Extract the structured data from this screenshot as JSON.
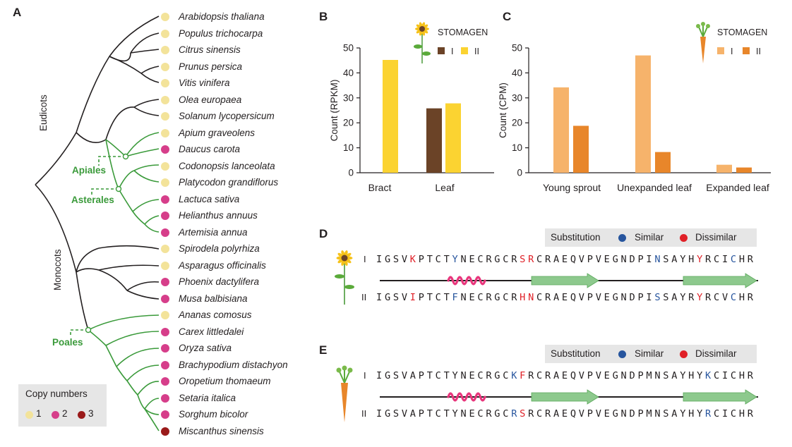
{
  "panels": {
    "a": "A",
    "b": "B",
    "c": "C",
    "d": "D",
    "e": "E"
  },
  "colors": {
    "copy1": "#f3e39a",
    "copy2": "#d63e8a",
    "copy3": "#9a1a1a",
    "tree_black": "#231f20",
    "tree_green": "#3a9a3a",
    "bract_leaf_II": "#fbd331",
    "sunflower_I": "#6b4327",
    "carrot_I": "#f6b36b",
    "carrot_II": "#e8862a",
    "similar": "#27559e",
    "dissimilar": "#e02027",
    "helix": "#e8367c",
    "strand": "#8dc98d"
  },
  "tree": {
    "species": [
      {
        "name": "Arabidopsis thaliana",
        "copies": 1
      },
      {
        "name": "Populus trichocarpa",
        "copies": 1
      },
      {
        "name": "Citrus sinensis",
        "copies": 1
      },
      {
        "name": "Prunus persica",
        "copies": 1
      },
      {
        "name": "Vitis vinifera",
        "copies": 1
      },
      {
        "name": "Olea europaea",
        "copies": 1
      },
      {
        "name": "Solanum lycopersicum",
        "copies": 1
      },
      {
        "name": "Apium graveolens",
        "copies": 1
      },
      {
        "name": "Daucus carota",
        "copies": 2
      },
      {
        "name": "Codonopsis lanceolata",
        "copies": 1
      },
      {
        "name": "Platycodon grandiflorus",
        "copies": 1
      },
      {
        "name": "Lactuca sativa",
        "copies": 2
      },
      {
        "name": "Helianthus annuus",
        "copies": 2
      },
      {
        "name": "Artemisia annua",
        "copies": 2
      },
      {
        "name": "Spirodela polyrhiza",
        "copies": 1
      },
      {
        "name": "Asparagus officinalis",
        "copies": 1
      },
      {
        "name": "Phoenix dactylifera",
        "copies": 2
      },
      {
        "name": "Musa balbisiana",
        "copies": 2
      },
      {
        "name": "Ananas comosus",
        "copies": 1
      },
      {
        "name": "Carex littledalei",
        "copies": 2
      },
      {
        "name": "Oryza sativa",
        "copies": 2
      },
      {
        "name": "Brachypodium distachyon",
        "copies": 2
      },
      {
        "name": "Oropetium thomaeum",
        "copies": 2
      },
      {
        "name": "Setaria italica",
        "copies": 2
      },
      {
        "name": "Sorghum bicolor",
        "copies": 2
      },
      {
        "name": "Miscanthus sinensis",
        "copies": 3
      }
    ],
    "groups": {
      "eudicots": "Eudicots",
      "monocots": "Monocots"
    },
    "clades": {
      "apiales": "Apiales",
      "asterales": "Asterales",
      "poales": "Poales"
    },
    "legend": {
      "title": "Copy numbers",
      "items": [
        "1",
        "2",
        "3"
      ]
    }
  },
  "chart_data": [
    {
      "type": "bar",
      "title": "",
      "legend_title": "STOMAGEN",
      "categories": [
        "Bract",
        "Leaf"
      ],
      "series": [
        {
          "name": "I",
          "values": [
            0,
            25.8
          ]
        },
        {
          "name": "II",
          "values": [
            45.2,
            27.8
          ]
        }
      ],
      "xlabel": "",
      "ylabel": "Count (RPKM)",
      "ylim": [
        0,
        50
      ],
      "yticks": [
        "0",
        "10",
        "20",
        "30",
        "40",
        "50"
      ],
      "grid": false,
      "legend_position": "top-right"
    },
    {
      "type": "bar",
      "title": "",
      "legend_title": "STOMAGEN",
      "categories": [
        "Young sprout",
        "Unexpanded leaf",
        "Expanded leaf"
      ],
      "series": [
        {
          "name": "I",
          "values": [
            34.2,
            47,
            3.2
          ]
        },
        {
          "name": "II",
          "values": [
            18.8,
            8.3,
            2.1
          ]
        }
      ],
      "xlabel": "",
      "ylabel": "Count (CPM)",
      "ylim": [
        0,
        50
      ],
      "yticks": [
        "0",
        "10",
        "20",
        "30",
        "40",
        "50"
      ],
      "grid": false,
      "legend_position": "top-right"
    }
  ],
  "alignment_legend": {
    "substitution": "Substitution",
    "similar": "Similar",
    "dissimilar": "Dissimilar"
  },
  "alignments": {
    "d": {
      "label_I": "I",
      "label_II": "II",
      "seq_I": "IGSVKPTCTYNECRGCRSRCRAEQVPVEGNDPINSAYHYRCICHR",
      "seq_II": "IGSVIPTCTFNECRGCRHNCRAEQVPVEGNDPISSAYRYRCVCHR",
      "colors_I": "....d....s.......dd..............s....d...s...",
      "colors_II": "....d....s.......dd..............s....d...s..."
    },
    "e": {
      "label_I": "I",
      "label_II": "II",
      "seq_I": "IGSVAPTCTYNECRGCKFRCRAEQVPVEGNDPMNSAYHYKCICHR",
      "seq_II": "IGSVAPTCTYNECRGCRSRCRAEQVPVEGNDPMNSAYHYRCICHR",
      "colors_I": "................sd.....................s.....",
      "colors_II": "................sd.....................s....."
    }
  }
}
